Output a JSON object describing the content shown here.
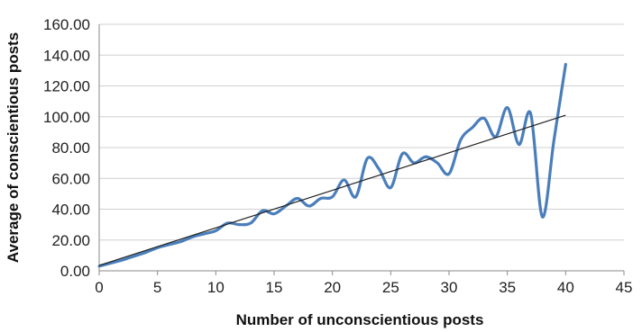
{
  "chart_data": {
    "type": "line",
    "title": "",
    "xlabel": "Number of unconscientious posts",
    "ylabel": "Average of conscientious posts",
    "xlim": [
      0,
      45
    ],
    "ylim": [
      0,
      160
    ],
    "x_ticks": [
      "0",
      "5",
      "10",
      "15",
      "20",
      "25",
      "30",
      "35",
      "40",
      "45"
    ],
    "y_ticks": [
      "0.00",
      "20.00",
      "40.00",
      "60.00",
      "80.00",
      "100.00",
      "120.00",
      "140.00",
      "160.00"
    ],
    "grid": "horizontal",
    "legend": "none",
    "series": [
      {
        "style": "smoothed",
        "color": "#4a7ebb",
        "x": [
          0,
          1,
          2,
          3,
          4,
          5,
          6,
          7,
          8,
          9,
          10,
          11,
          12,
          13,
          14,
          15,
          16,
          17,
          18,
          19,
          20,
          21,
          22,
          23,
          24,
          25,
          26,
          27,
          28,
          29,
          30,
          31,
          32,
          33,
          34,
          35,
          36,
          37,
          38,
          39,
          40
        ],
        "y": [
          3,
          5,
          7,
          9.5,
          12,
          15,
          17,
          19,
          22,
          24,
          26,
          31,
          30,
          31,
          39,
          37,
          42,
          47,
          42,
          47,
          48,
          59,
          48,
          73,
          66,
          54,
          76,
          70,
          74,
          70,
          63,
          85,
          93,
          99,
          87,
          106,
          82,
          102,
          35,
          85,
          134
        ]
      },
      {
        "style": "trendline",
        "color": "#222222",
        "x": [
          0,
          40
        ],
        "y": [
          3.5,
          101
        ]
      }
    ]
  }
}
